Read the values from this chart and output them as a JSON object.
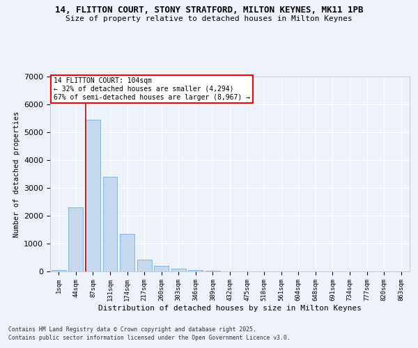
{
  "title1": "14, FLITTON COURT, STONY STRATFORD, MILTON KEYNES, MK11 1PB",
  "title2": "Size of property relative to detached houses in Milton Keynes",
  "xlabel": "Distribution of detached houses by size in Milton Keynes",
  "ylabel": "Number of detached properties",
  "categories": [
    "1sqm",
    "44sqm",
    "87sqm",
    "131sqm",
    "174sqm",
    "217sqm",
    "260sqm",
    "303sqm",
    "346sqm",
    "389sqm",
    "432sqm",
    "475sqm",
    "518sqm",
    "561sqm",
    "604sqm",
    "648sqm",
    "691sqm",
    "734sqm",
    "777sqm",
    "820sqm",
    "863sqm"
  ],
  "values": [
    55,
    2300,
    5450,
    3400,
    1350,
    430,
    190,
    100,
    55,
    15,
    5,
    2,
    1,
    0,
    0,
    0,
    0,
    0,
    0,
    0,
    0
  ],
  "bar_color": "#c5d8ef",
  "bar_edge_color": "#7aafd4",
  "vline_color": "#cc0000",
  "vline_pos": 1.57,
  "annotation_text": "14 FLITTON COURT: 104sqm\n← 32% of detached houses are smaller (4,294)\n67% of semi-detached houses are larger (8,967) →",
  "ylim": [
    0,
    7000
  ],
  "yticks": [
    0,
    1000,
    2000,
    3000,
    4000,
    5000,
    6000,
    7000
  ],
  "bg_color": "#eef2fa",
  "grid_color": "#ffffff",
  "footer1": "Contains HM Land Registry data © Crown copyright and database right 2025.",
  "footer2": "Contains public sector information licensed under the Open Government Licence v3.0."
}
